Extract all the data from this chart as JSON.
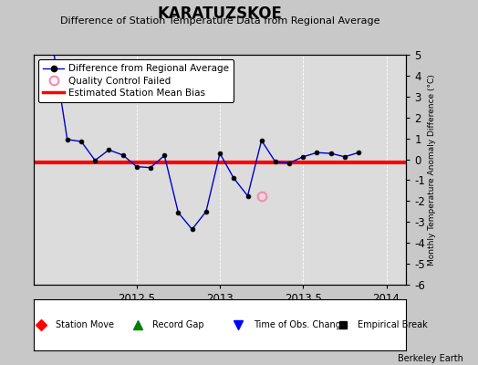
{
  "title": "KARATUZSKOE",
  "subtitle": "Difference of Station Temperature Data from Regional Average",
  "ylabel_right": "Monthly Temperature Anomaly Difference (°C)",
  "watermark": "Berkeley Earth",
  "xlim": [
    2011.88,
    2014.12
  ],
  "ylim": [
    -6,
    5
  ],
  "yticks": [
    -6,
    -5,
    -4,
    -3,
    -2,
    -1,
    0,
    1,
    2,
    3,
    4,
    5
  ],
  "xticks": [
    2012.5,
    2013.0,
    2013.5,
    2014.0
  ],
  "bias_value": -0.15,
  "main_line_color": "#0000CC",
  "bias_line_color": "#FF0000",
  "plot_bg_color": "#DCDCDC",
  "fig_bg_color": "#C8C8C8",
  "x_data": [
    2012.0,
    2012.083,
    2012.167,
    2012.25,
    2012.333,
    2012.417,
    2012.5,
    2012.583,
    2012.667,
    2012.75,
    2012.833,
    2012.917,
    2013.0,
    2013.083,
    2013.167,
    2013.25,
    2013.333,
    2013.417,
    2013.5,
    2013.583,
    2013.667,
    2013.75,
    2013.833
  ],
  "y_data": [
    5.2,
    0.95,
    0.85,
    -0.05,
    0.45,
    0.2,
    -0.35,
    -0.4,
    0.18,
    -2.55,
    -3.35,
    -2.5,
    0.28,
    -0.9,
    -1.75,
    0.9,
    -0.12,
    -0.18,
    0.12,
    0.32,
    0.28,
    0.12,
    0.32
  ],
  "qc_x": [
    2013.25
  ],
  "qc_y": [
    -1.75
  ],
  "grid_color": "white",
  "grid_style": "--",
  "legend_fontsize": 7.5,
  "tick_fontsize": 8.5,
  "title_fontsize": 12,
  "subtitle_fontsize": 8
}
